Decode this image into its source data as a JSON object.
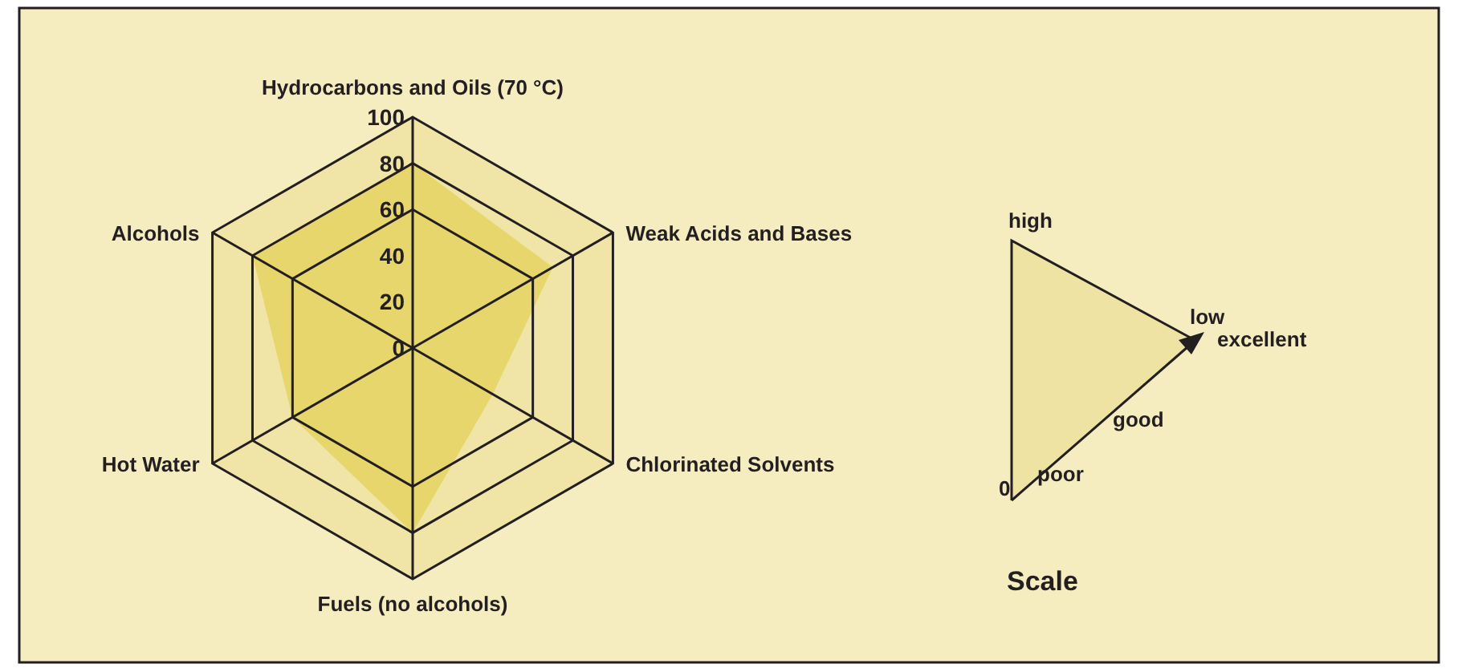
{
  "chart_data": {
    "type": "radar",
    "categories": [
      "Hydrocarbons and Oils (70 °C)",
      "Weak Acids and Bases",
      "Chlorinated Solvents",
      "Fuels (no alcohols)",
      "Hot Water",
      "Alcohols"
    ],
    "series": [
      {
        "color": "#e6d66c",
        "values": [
          80,
          70,
          40,
          80,
          60,
          80
        ]
      }
    ],
    "ylim": [
      0,
      100
    ],
    "yticks": [
      0,
      20,
      40,
      60,
      80,
      100
    ],
    "annotations": [
      "high",
      "low",
      "excellent",
      "good",
      "poor",
      "0",
      "Scale"
    ]
  }
}
